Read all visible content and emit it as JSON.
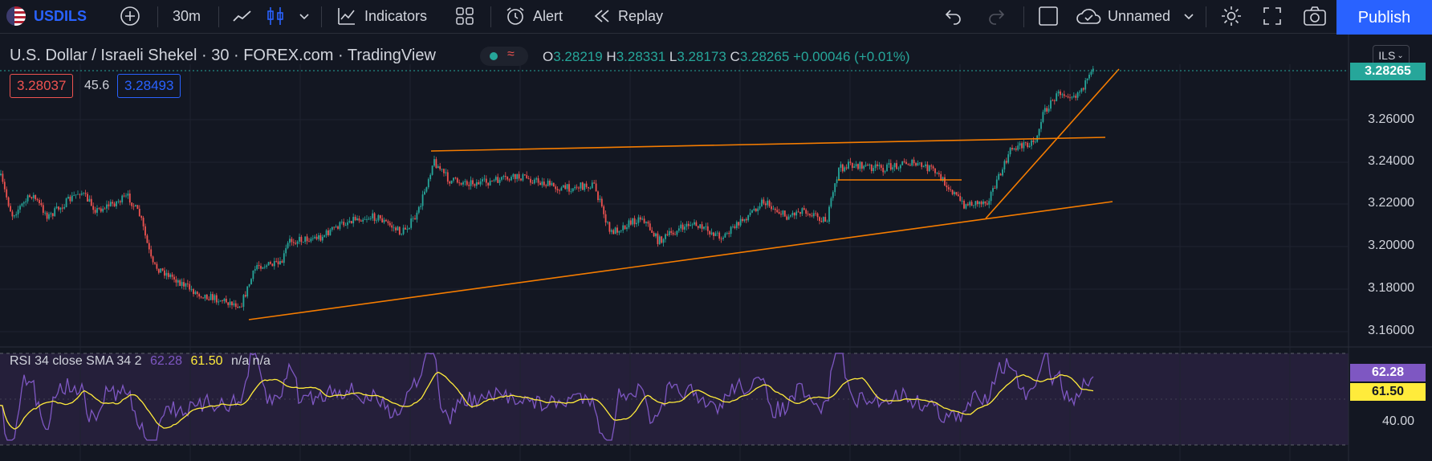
{
  "toolbar": {
    "symbol": "USDILS",
    "interval": "30m",
    "indicators_label": "Indicators",
    "alert_label": "Alert",
    "replay_label": "Replay",
    "layout_name": "Unnamed",
    "publish_label": "Publish"
  },
  "legend": {
    "title": "U.S. Dollar / Israeli Shekel · 30 · FOREX.com · TradingView",
    "open_key": "O",
    "open": "3.28219",
    "high_key": "H",
    "high": "3.28331",
    "low_key": "L",
    "low": "3.28173",
    "close_key": "C",
    "close": "3.28265",
    "change": "+0.00046 (+0.01%)"
  },
  "quotes": {
    "sell": "3.28037",
    "spread": "45.6",
    "buy": "3.28493"
  },
  "price_axis": {
    "currency": "ILS",
    "current_price": "3.28265",
    "labels": [
      "3.26000",
      "3.24000",
      "3.22000",
      "3.20000",
      "3.18000",
      "3.16000"
    ]
  },
  "rsi": {
    "label": "RSI 34 close SMA 34 2",
    "rsi_value": "62.28",
    "sma_value": "61.50",
    "extra": "n/a n/a",
    "axis_label": "40.00",
    "rsi_badge": "62.28",
    "sma_badge": "61.50"
  },
  "colors": {
    "background": "#131722",
    "up": "#26a69a",
    "down": "#ef5350",
    "trendline": "#f57c00",
    "rsi_line": "#7e57c2",
    "rsi_sma": "#ffeb3b",
    "accent": "#2962ff"
  }
}
